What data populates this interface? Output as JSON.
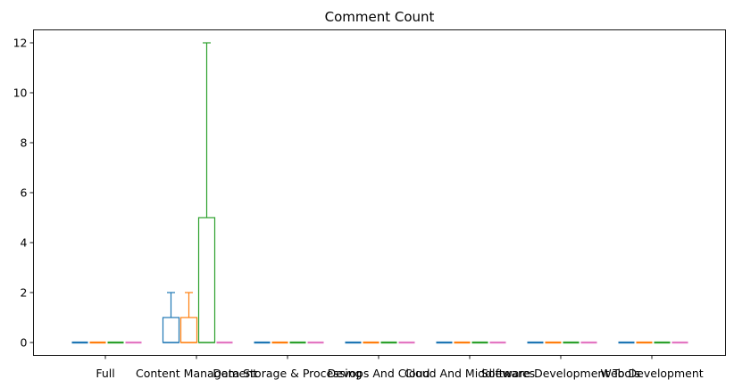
{
  "chart_data": {
    "type": "box",
    "title": "Comment Count",
    "xlabel": "",
    "ylabel": "",
    "ylim": [
      -0.5,
      12.6
    ],
    "yticks": [
      0,
      2,
      4,
      6,
      8,
      10,
      12
    ],
    "grid": false,
    "categories": [
      "Full",
      "Content Management",
      "Data Storage & Processing",
      "Devops And Cloud",
      "Cloud And Middlewares",
      "Software Development Tools",
      "Web Development"
    ],
    "series_colors": [
      "#1f77b4",
      "#ff7f0e",
      "#2ca02c",
      "#e377c2"
    ],
    "boxes": [
      [
        {
          "whislo": 0,
          "q1": 0,
          "med": 0,
          "q3": 0,
          "whishi": 0
        },
        {
          "whislo": 0,
          "q1": 0,
          "med": 0,
          "q3": 0,
          "whishi": 0
        },
        {
          "whislo": 0,
          "q1": 0,
          "med": 0,
          "q3": 0,
          "whishi": 0
        },
        {
          "whislo": 0,
          "q1": 0,
          "med": 0,
          "q3": 0,
          "whishi": 0
        }
      ],
      [
        {
          "whislo": 0,
          "q1": 0,
          "med": 0,
          "q3": 1,
          "whishi": 2
        },
        {
          "whislo": 0,
          "q1": 0,
          "med": 0,
          "q3": 1,
          "whishi": 2
        },
        {
          "whislo": 0,
          "q1": 0,
          "med": 0,
          "q3": 5,
          "whishi": 12
        },
        {
          "whislo": 0,
          "q1": 0,
          "med": 0,
          "q3": 0,
          "whishi": 0
        }
      ],
      [
        {
          "whislo": 0,
          "q1": 0,
          "med": 0,
          "q3": 0,
          "whishi": 0
        },
        {
          "whislo": 0,
          "q1": 0,
          "med": 0,
          "q3": 0,
          "whishi": 0
        },
        {
          "whislo": 0,
          "q1": 0,
          "med": 0,
          "q3": 0,
          "whishi": 0
        },
        {
          "whislo": 0,
          "q1": 0,
          "med": 0,
          "q3": 0,
          "whishi": 0
        }
      ],
      [
        {
          "whislo": 0,
          "q1": 0,
          "med": 0,
          "q3": 0,
          "whishi": 0
        },
        {
          "whislo": 0,
          "q1": 0,
          "med": 0,
          "q3": 0,
          "whishi": 0
        },
        {
          "whislo": 0,
          "q1": 0,
          "med": 0,
          "q3": 0,
          "whishi": 0
        },
        {
          "whislo": 0,
          "q1": 0,
          "med": 0,
          "q3": 0,
          "whishi": 0
        }
      ],
      [
        {
          "whislo": 0,
          "q1": 0,
          "med": 0,
          "q3": 0,
          "whishi": 0
        },
        {
          "whislo": 0,
          "q1": 0,
          "med": 0,
          "q3": 0,
          "whishi": 0
        },
        {
          "whislo": 0,
          "q1": 0,
          "med": 0,
          "q3": 0,
          "whishi": 0
        },
        {
          "whislo": 0,
          "q1": 0,
          "med": 0,
          "q3": 0,
          "whishi": 0
        }
      ],
      [
        {
          "whislo": 0,
          "q1": 0,
          "med": 0,
          "q3": 0,
          "whishi": 0
        },
        {
          "whislo": 0,
          "q1": 0,
          "med": 0,
          "q3": 0,
          "whishi": 0
        },
        {
          "whislo": 0,
          "q1": 0,
          "med": 0,
          "q3": 0,
          "whishi": 0
        },
        {
          "whislo": 0,
          "q1": 0,
          "med": 0,
          "q3": 0,
          "whishi": 0
        }
      ],
      [
        {
          "whislo": 0,
          "q1": 0,
          "med": 0,
          "q3": 0,
          "whishi": 0
        },
        {
          "whislo": 0,
          "q1": 0,
          "med": 0,
          "q3": 0,
          "whishi": 0
        },
        {
          "whislo": 0,
          "q1": 0,
          "med": 0,
          "q3": 0,
          "whishi": 0
        },
        {
          "whislo": 0,
          "q1": 0,
          "med": 0,
          "q3": 0,
          "whishi": 0
        }
      ]
    ]
  }
}
